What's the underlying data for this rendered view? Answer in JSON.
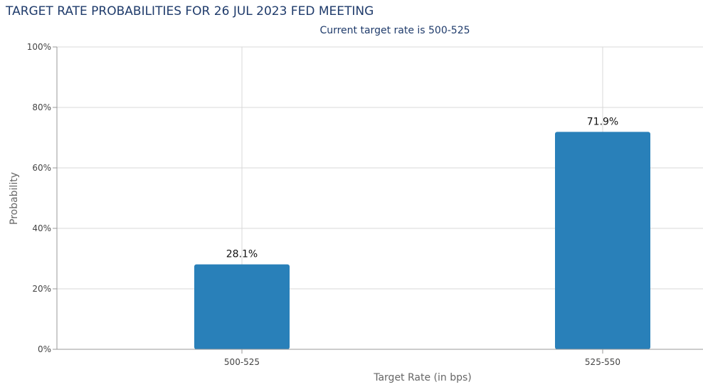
{
  "chart_data": {
    "type": "bar",
    "title": "TARGET RATE PROBABILITIES FOR 26 JUL 2023 FED MEETING",
    "subtitle": "Current target rate is 500-525",
    "categories": [
      "500-525",
      "525-550"
    ],
    "values": [
      28.1,
      71.9
    ],
    "value_labels": [
      "28.1%",
      "71.9%"
    ],
    "xlabel": "Target Rate (in bps)",
    "ylabel": "Probability",
    "ylim": [
      0,
      100
    ],
    "yticks": [
      0,
      20,
      40,
      60,
      80,
      100
    ],
    "ytick_labels": [
      "0%",
      "20%",
      "40%",
      "60%",
      "80%",
      "100%"
    ],
    "grid": true,
    "bar_color": "#2980b9"
  }
}
